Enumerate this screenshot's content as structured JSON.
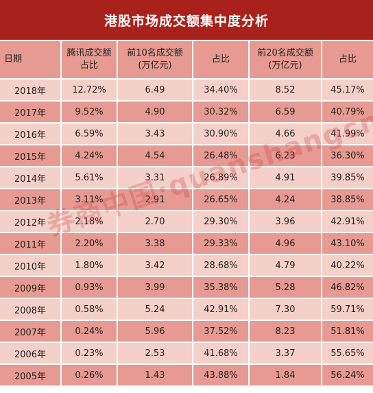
{
  "title": "港股市场成交额集中度分析",
  "columns": [
    {
      "line1": "日期",
      "line2": ""
    },
    {
      "line1": "腾讯成交额",
      "line2": "占比"
    },
    {
      "line1": "前10名成交额",
      "line2": "(万亿元)"
    },
    {
      "line1": "占比",
      "line2": ""
    },
    {
      "line1": "前20名成交额",
      "line2": "(万亿元)"
    },
    {
      "line1": "占比",
      "line2": ""
    }
  ],
  "rows": [
    {
      "year": "2018年",
      "tencent": "12.72%",
      "top10": "6.49",
      "top10_pct": "34.40%",
      "top20": "8.52",
      "top20_pct": "45.17%"
    },
    {
      "year": "2017年",
      "tencent": "9.52%",
      "top10": "4.90",
      "top10_pct": "30.32%",
      "top20": "6.59",
      "top20_pct": "40.79%"
    },
    {
      "year": "2016年",
      "tencent": "6.59%",
      "top10": "3.43",
      "top10_pct": "30.90%",
      "top20": "4.66",
      "top20_pct": "41.99%"
    },
    {
      "year": "2015年",
      "tencent": "4.24%",
      "top10": "4.54",
      "top10_pct": "26.48%",
      "top20": "6.23",
      "top20_pct": "36.30%"
    },
    {
      "year": "2014年",
      "tencent": "5.61%",
      "top10": "3.31",
      "top10_pct": "26.89%",
      "top20": "4.91",
      "top20_pct": "39.85%"
    },
    {
      "year": "2013年",
      "tencent": "3.11%",
      "top10": "2.91",
      "top10_pct": "26.65%",
      "top20": "4.24",
      "top20_pct": "38.85%"
    },
    {
      "year": "2012年",
      "tencent": "2.18%",
      "top10": "2.70",
      "top10_pct": "29.30%",
      "top20": "3.96",
      "top20_pct": "42.91%"
    },
    {
      "year": "2011年",
      "tencent": "2.20%",
      "top10": "3.38",
      "top10_pct": "29.33%",
      "top20": "4.96",
      "top20_pct": "43.10%"
    },
    {
      "year": "2010年",
      "tencent": "1.80%",
      "top10": "3.42",
      "top10_pct": "28.68%",
      "top20": "4.79",
      "top20_pct": "40.22%"
    },
    {
      "year": "2009年",
      "tencent": "0.93%",
      "top10": "3.99",
      "top10_pct": "35.38%",
      "top20": "5.28",
      "top20_pct": "46.82%"
    },
    {
      "year": "2008年",
      "tencent": "0.58%",
      "top10": "5.24",
      "top10_pct": "42.91%",
      "top20": "7.30",
      "top20_pct": "59.71%"
    },
    {
      "year": "2007年",
      "tencent": "0.24%",
      "top10": "5.96",
      "top10_pct": "37.52%",
      "top20": "8.23",
      "top20_pct": "51.81%"
    },
    {
      "year": "2006年",
      "tencent": "0.23%",
      "top10": "2.53",
      "top10_pct": "41.68%",
      "top20": "3.37",
      "top20_pct": "55.65%"
    },
    {
      "year": "2005年",
      "tencent": "0.26%",
      "top10": "1.43",
      "top10_pct": "43.88%",
      "top20": "1.84",
      "top20_pct": "56.24%"
    }
  ],
  "watermark": "券商中国·quanshangcn",
  "colors": {
    "title_bg": "#a8221b",
    "row_light": "#f5d0c9",
    "row_dark": "#e69a91"
  }
}
